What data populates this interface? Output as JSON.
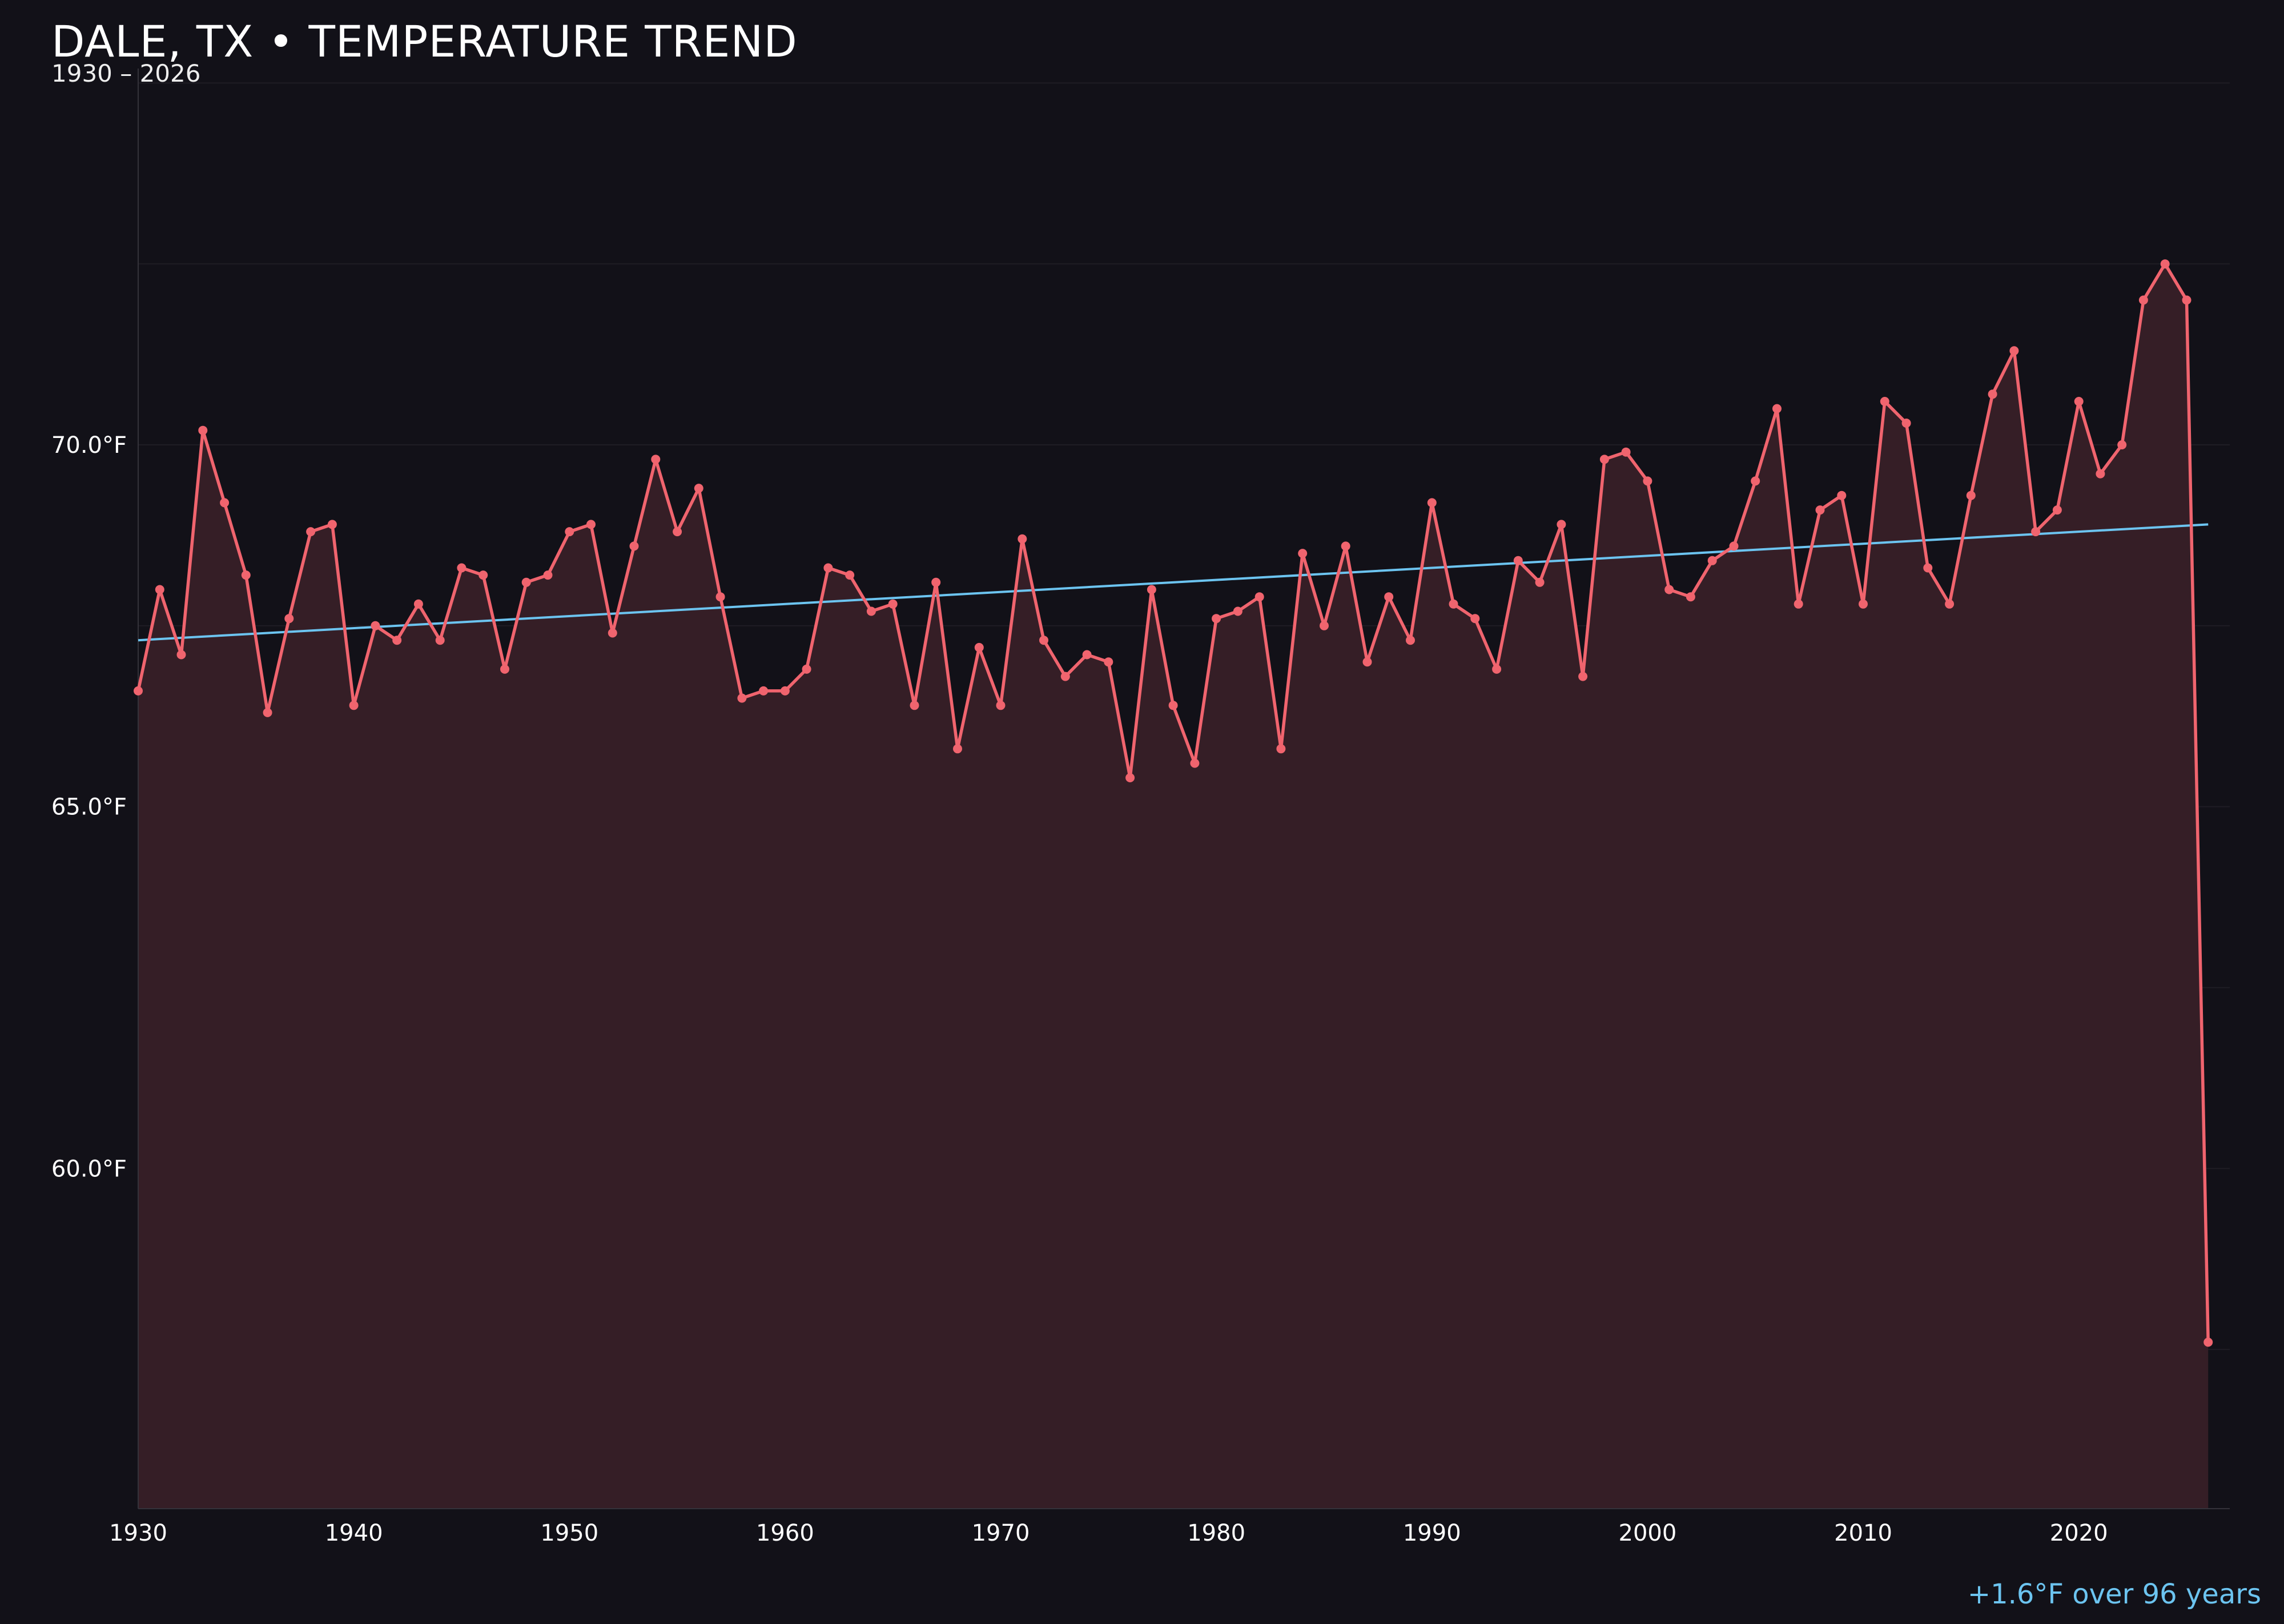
{
  "title": "DALE, TX • TEMPERATURE TREND",
  "subtitle": "1930 – 2026",
  "footnote": "+1.6°F over 96 years",
  "colors": {
    "background": "#121118",
    "line": "#f0646e",
    "area": "#351e26",
    "trend": "#6cc4f0",
    "grid": "#1f1d24",
    "axis": "#34323a"
  },
  "chart_data": {
    "type": "line",
    "title": "DALE, TX • TEMPERATURE TREND",
    "subtitle": "1930 – 2026",
    "xlabel": "",
    "ylabel": "",
    "xlim": [
      1930,
      2027
    ],
    "ylim": [
      55.3,
      75.2
    ],
    "grid": true,
    "x_ticks": [
      1930,
      1940,
      1950,
      1960,
      1970,
      1980,
      1990,
      2000,
      2010,
      2020
    ],
    "y_ticks": [
      60.0,
      65.0,
      70.0
    ],
    "y_tick_labels": [
      "60.0°F",
      "65.0°F",
      "70.0°F"
    ],
    "series": [
      {
        "x": [
          1930,
          1931,
          1932,
          1933,
          1934,
          1935,
          1936,
          1937,
          1938,
          1939,
          1940,
          1941,
          1942,
          1943,
          1944,
          1945,
          1946,
          1947,
          1948,
          1949,
          1950,
          1951,
          1952,
          1953,
          1954,
          1955,
          1956,
          1957,
          1958,
          1959,
          1960,
          1961,
          1962,
          1963,
          1964,
          1965,
          1966,
          1967,
          1968,
          1969,
          1970,
          1971,
          1972,
          1973,
          1974,
          1975,
          1976,
          1977,
          1978,
          1979,
          1980,
          1981,
          1982,
          1983,
          1984,
          1985,
          1986,
          1987,
          1988,
          1989,
          1990,
          1991,
          1992,
          1993,
          1994,
          1995,
          1996,
          1997,
          1998,
          1999,
          2000,
          2001,
          2002,
          2003,
          2004,
          2005,
          2006,
          2007,
          2008,
          2009,
          2010,
          2011,
          2012,
          2013,
          2014,
          2015,
          2016,
          2017,
          2018,
          2019,
          2020,
          2021,
          2022,
          2023,
          2024,
          2025,
          2026
        ],
        "values": [
          66.6,
          68.0,
          67.1,
          70.2,
          69.2,
          68.2,
          66.3,
          67.6,
          68.8,
          68.9,
          66.4,
          67.5,
          67.3,
          67.8,
          67.3,
          68.3,
          68.2,
          66.9,
          68.1,
          68.2,
          68.8,
          68.9,
          67.4,
          68.6,
          69.8,
          68.8,
          69.4,
          67.9,
          66.5,
          66.6,
          66.6,
          66.9,
          68.3,
          68.2,
          67.7,
          67.8,
          66.4,
          68.1,
          65.8,
          67.2,
          66.4,
          68.7,
          67.3,
          66.8,
          67.1,
          67.0,
          65.4,
          68.0,
          66.4,
          65.6,
          67.6,
          67.7,
          67.9,
          65.8,
          68.5,
          67.5,
          68.6,
          67.0,
          67.9,
          67.3,
          69.2,
          67.8,
          67.6,
          66.9,
          68.4,
          68.1,
          68.9,
          66.8,
          69.8,
          69.9,
          69.5,
          68.0,
          67.9,
          68.4,
          68.6,
          69.5,
          70.5,
          67.8,
          69.1,
          69.3,
          67.8,
          70.6,
          70.3,
          68.3,
          67.8,
          69.3,
          70.7,
          71.3,
          68.8,
          69.1,
          70.6,
          69.6,
          70.0,
          72.0,
          72.5,
          72.0,
          57.6
        ]
      }
    ],
    "trend": {
      "x": [
        1930,
        2026
      ],
      "values": [
        67.3,
        68.9
      ]
    }
  }
}
